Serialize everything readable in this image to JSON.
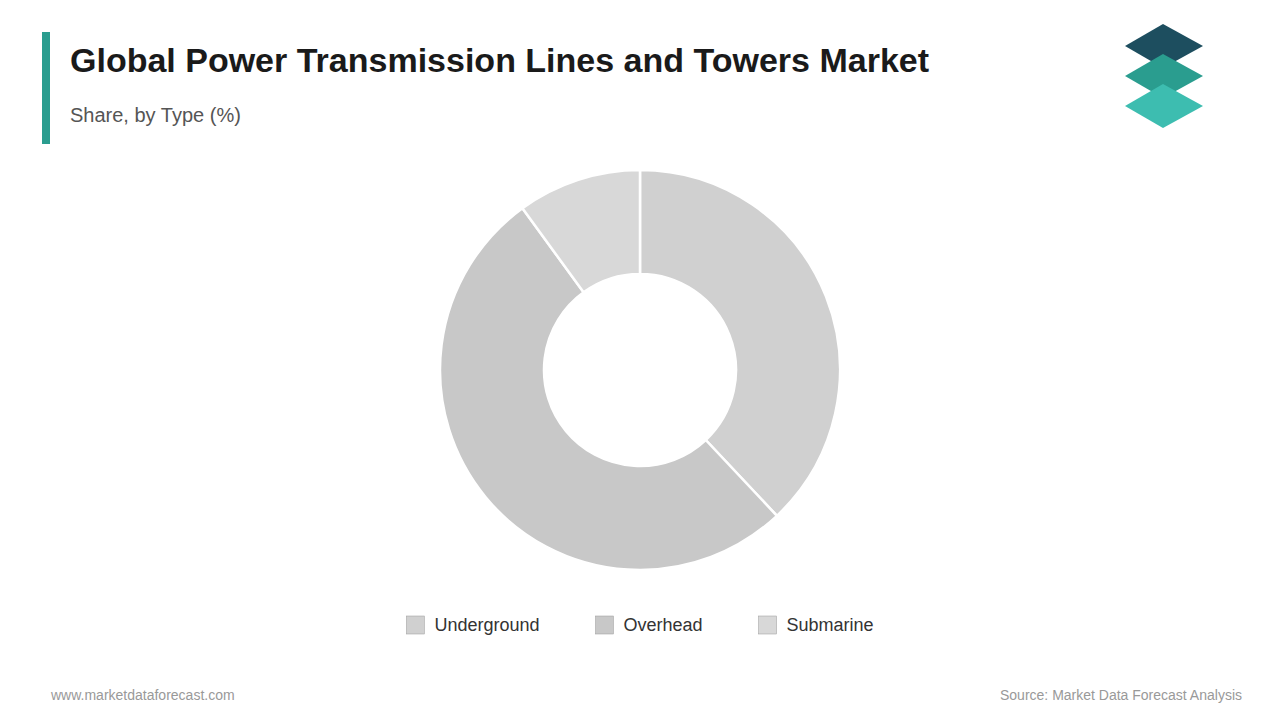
{
  "chart_data": {
    "type": "donut",
    "title": "Global Power Transmission Lines and Towers Market",
    "subtitle": "Share, by Type (%)",
    "categories": [
      "Underground",
      "Overhead",
      "Submarine"
    ],
    "values": [
      38,
      52,
      10
    ],
    "colors": [
      "#d0d0d0",
      "#c8c8c8",
      "#d8d8d8"
    ],
    "legend": "bottom",
    "annotations": [
      "www.marketdataforecast.com",
      "Source: Market Data Forecast Analysis"
    ]
  }
}
